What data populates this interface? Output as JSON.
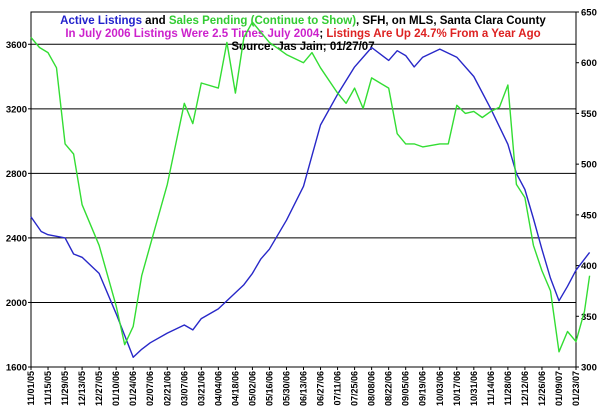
{
  "chart_data": {
    "type": "line",
    "title_lines": [
      [
        {
          "text": "Active Listings",
          "color": "#2222cc"
        },
        {
          "text": " and ",
          "color": "#000000"
        },
        {
          "text": "Sales Pending (Continue to Show)",
          "color": "#33cc33"
        },
        {
          "text": ", SFH, on MLS, Santa Clara County",
          "color": "#000000"
        }
      ],
      [
        {
          "text": "In July 2006 Listings Were 2.5 Times July 2004",
          "color": "#cc22cc"
        },
        {
          "text": "; ",
          "color": "#000000"
        },
        {
          "text": "Listings Are Up 24.7% From a Year Ago",
          "color": "#dd2222"
        }
      ],
      [
        {
          "text": "Source: Jas Jain; 01/27/07",
          "color": "#000000"
        }
      ]
    ],
    "x_ticks": [
      "11/01/05",
      "11/15/05",
      "11/29/05",
      "12/13/05",
      "12/27/05",
      "01/10/06",
      "01/24/06",
      "02/07/06",
      "02/21/06",
      "03/07/06",
      "03/21/06",
      "04/04/06",
      "04/18/06",
      "05/02/06",
      "05/16/06",
      "05/30/06",
      "06/13/06",
      "06/27/06",
      "07/11/06",
      "07/25/06",
      "08/08/06",
      "08/22/06",
      "09/05/06",
      "09/19/06",
      "10/03/06",
      "10/17/06",
      "10/31/06",
      "11/14/06",
      "11/28/06",
      "12/12/06",
      "12/26/06",
      "01/09/07",
      "01/23/07"
    ],
    "y_left": {
      "min": 1600,
      "max": 3800,
      "ticks": [
        1600,
        2000,
        2400,
        2800,
        3200,
        3600
      ]
    },
    "y_right": {
      "min": 300,
      "max": 650,
      "ticks": [
        300,
        350,
        400,
        450,
        500,
        550,
        600,
        650
      ]
    },
    "grid": true,
    "series": [
      {
        "name": "Active Listings",
        "axis": "left",
        "color": "#2828c8",
        "x": [
          0,
          0.6,
          1,
          2,
          2.5,
          3,
          4,
          5,
          6,
          6.5,
          7,
          8,
          9,
          9.5,
          10,
          11,
          12,
          12.5,
          13,
          13.5,
          14,
          15,
          16,
          16.5,
          17,
          18,
          19,
          20,
          21,
          21.5,
          22,
          22.5,
          23,
          24,
          25,
          26,
          27,
          28,
          28.5,
          29,
          29.5,
          30,
          30.5,
          31,
          31.5,
          32,
          32.8
        ],
        "values": [
          2530,
          2440,
          2420,
          2400,
          2300,
          2280,
          2180,
          1930,
          1660,
          1710,
          1750,
          1810,
          1860,
          1830,
          1900,
          1960,
          2060,
          2110,
          2180,
          2270,
          2330,
          2510,
          2720,
          2910,
          3100,
          3290,
          3460,
          3580,
          3500,
          3560,
          3530,
          3460,
          3520,
          3570,
          3520,
          3400,
          3200,
          2980,
          2800,
          2700,
          2520,
          2330,
          2150,
          2010,
          2100,
          2200,
          2310
        ]
      },
      {
        "name": "Sales Pending (Continue to Show)",
        "axis": "right",
        "color": "#33dd33",
        "x": [
          0,
          0.5,
          1,
          1.5,
          2,
          2.5,
          3,
          4,
          5,
          5.5,
          6,
          6.5,
          7,
          8,
          9,
          9.5,
          10,
          11,
          11.5,
          12,
          12.5,
          13,
          13.5,
          14,
          15,
          16,
          16.5,
          17,
          18,
          18.5,
          19,
          19.5,
          20,
          20.5,
          21,
          21.5,
          22,
          22.5,
          23,
          24,
          24.5,
          25,
          25.5,
          26,
          26.5,
          27,
          27.5,
          28,
          28.5,
          29,
          29.5,
          30,
          30.5,
          31,
          31.5,
          32,
          32.5,
          32.8
        ],
        "values": [
          625,
          615,
          610,
          595,
          520,
          510,
          460,
          420,
          360,
          322,
          340,
          390,
          420,
          480,
          560,
          540,
          580,
          575,
          620,
          570,
          625,
          640,
          630,
          620,
          608,
          600,
          610,
          595,
          570,
          560,
          575,
          555,
          585,
          580,
          575,
          530,
          520,
          520,
          517,
          520,
          520,
          558,
          550,
          552,
          546,
          552,
          556,
          578,
          480,
          467,
          420,
          395,
          375,
          315,
          335,
          325,
          355,
          390
        ]
      }
    ]
  }
}
